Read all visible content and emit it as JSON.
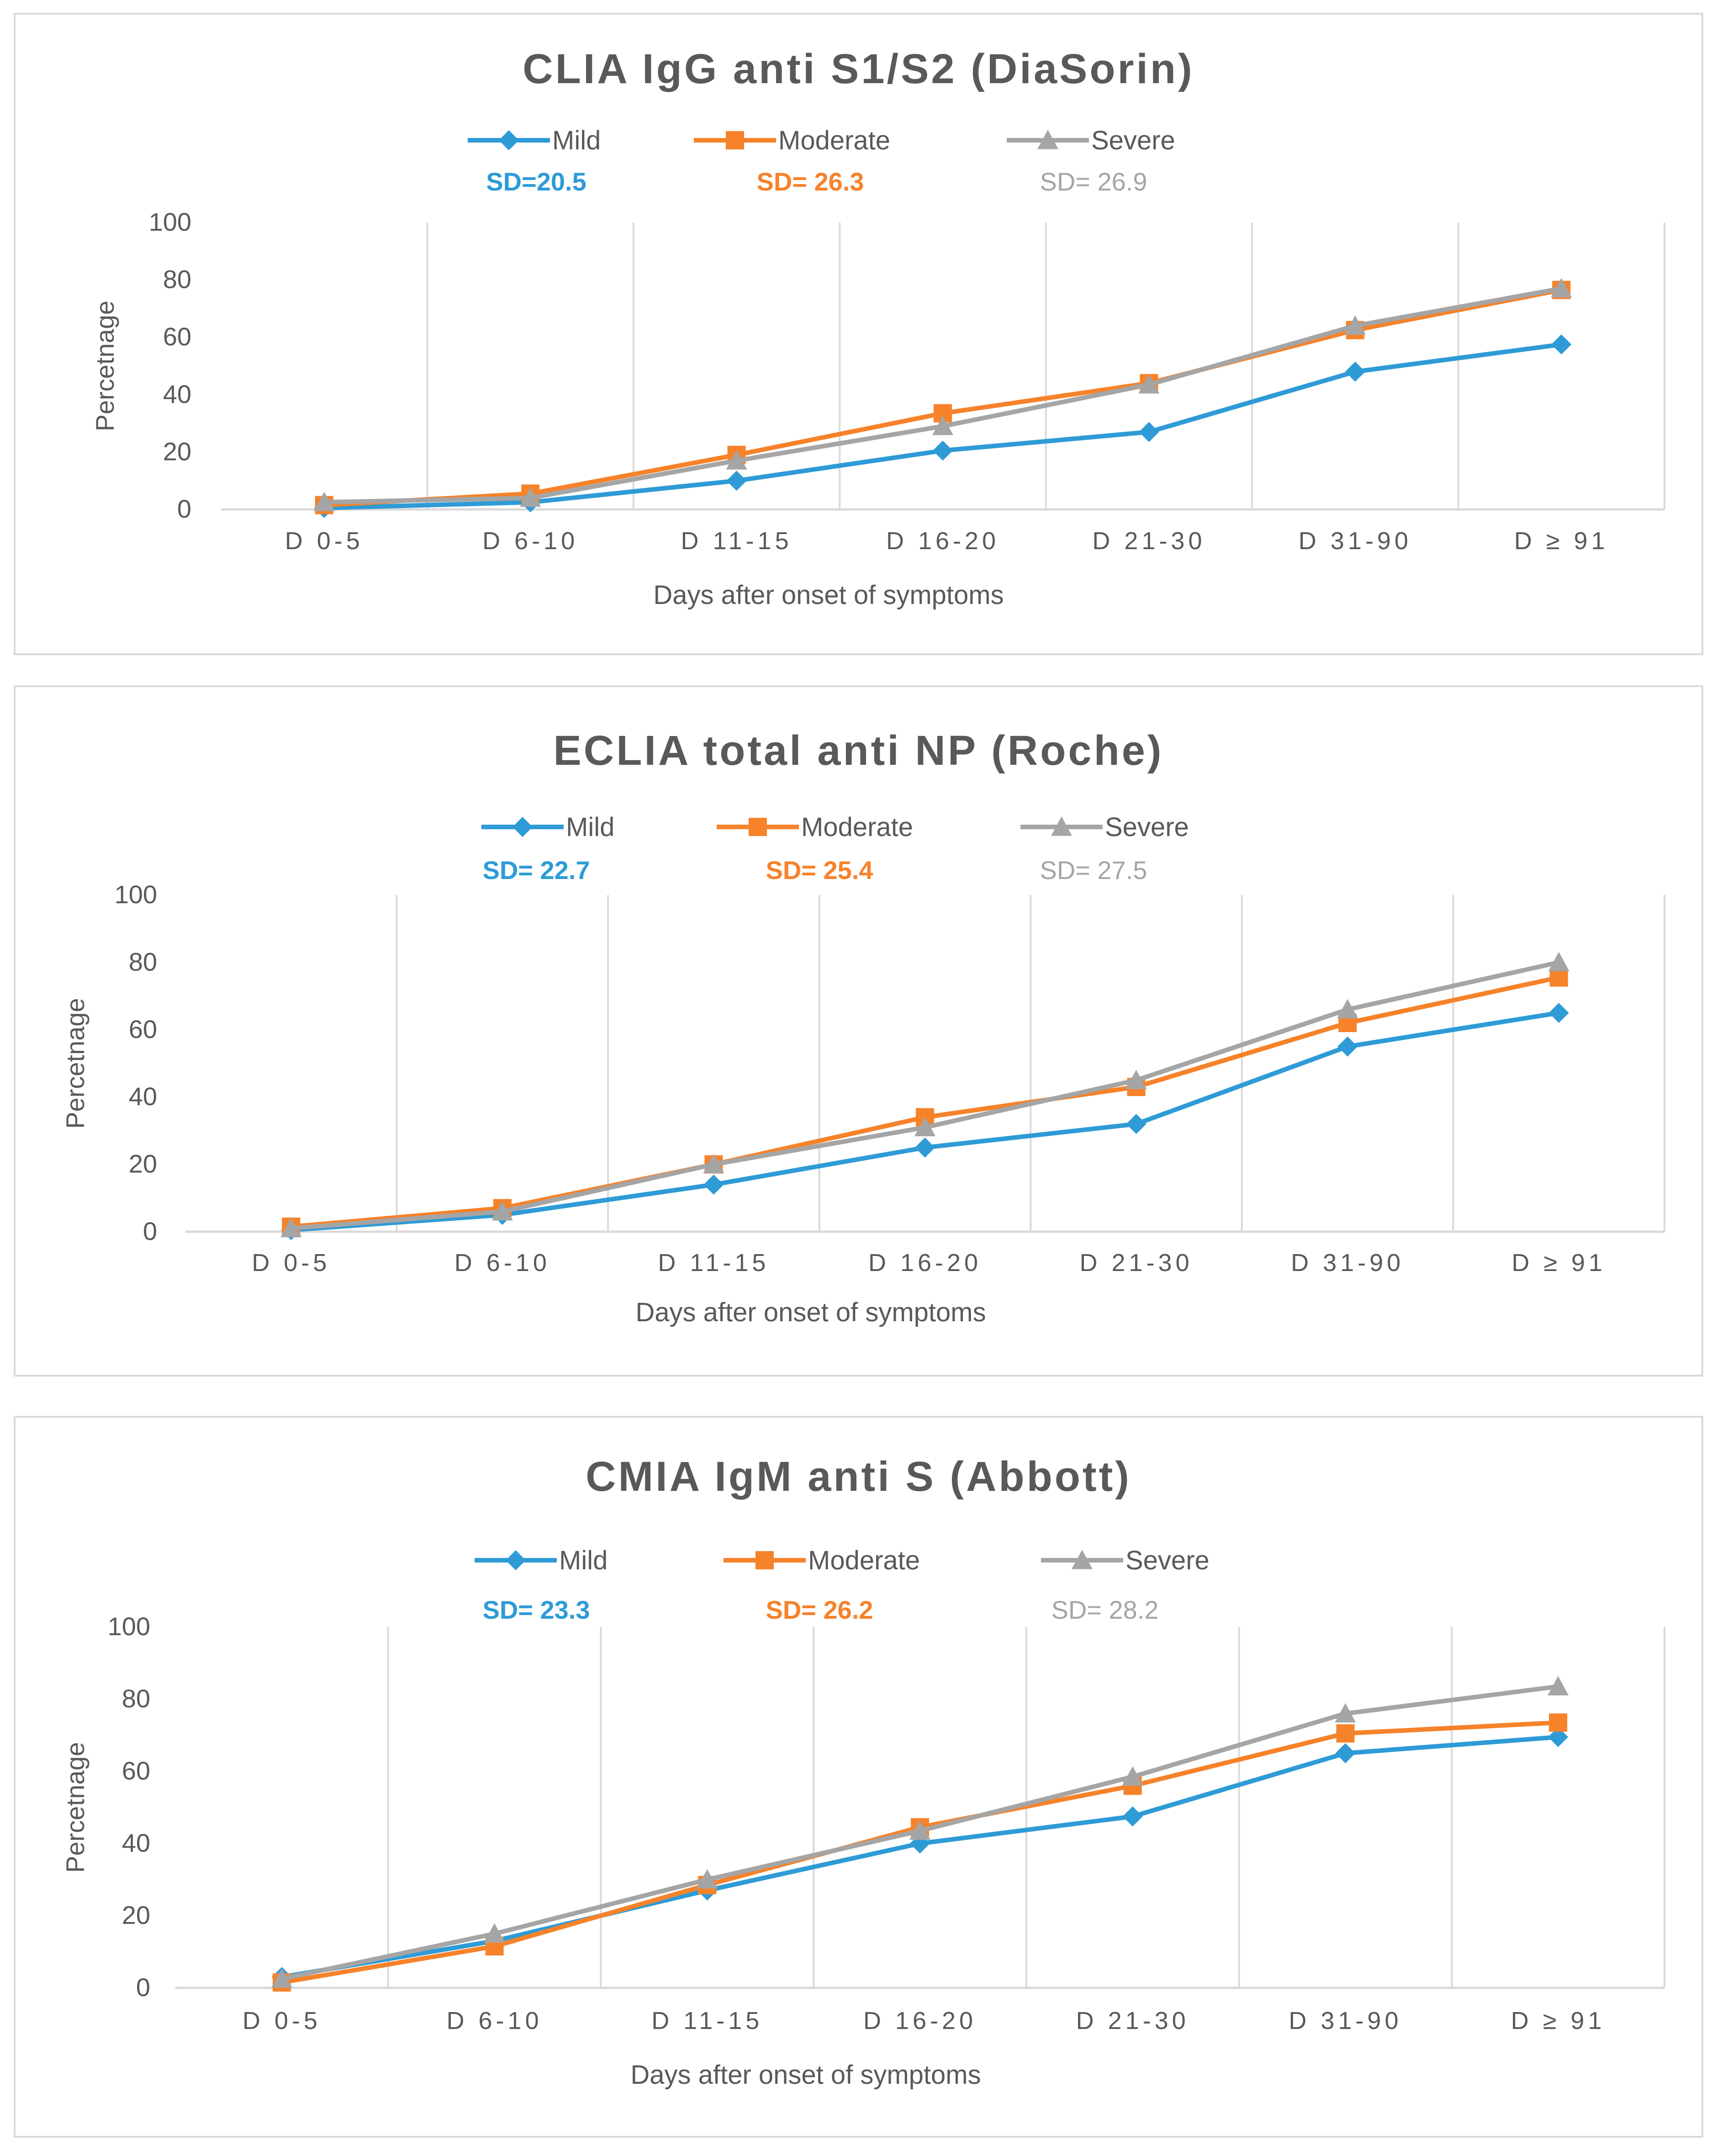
{
  "chart_data": [
    {
      "type": "line",
      "title": "CLIA IgG anti S1/S2 (DiaSorin)",
      "xlabel": "Days after onset of symptoms",
      "ylabel": "Percetnage",
      "ylim": [
        0,
        100
      ],
      "yticks": [
        0,
        20,
        40,
        60,
        80,
        100
      ],
      "categories": [
        "D 0-5",
        "D 6-10",
        "D 11-15",
        "D 16-20",
        "D 21-30",
        "D 31-90",
        "D ≥ 91"
      ],
      "legend_position": "top-center",
      "series": [
        {
          "name": "Mild",
          "marker": "diamond",
          "color": "#2e9bd6",
          "sd_label": "SD=20.5",
          "values": [
            0.5,
            2.5,
            10,
            20.5,
            27,
            48,
            57.5
          ]
        },
        {
          "name": "Moderate",
          "marker": "square",
          "color": "#f6822a",
          "sd_label": "SD= 26.3",
          "values": [
            1.5,
            5.5,
            19,
            33.5,
            44,
            62.5,
            76.5
          ]
        },
        {
          "name": "Severe",
          "marker": "triangle",
          "color": "#a5a5a5",
          "sd_label": "SD= 26.9",
          "values": [
            2.5,
            4,
            17,
            29,
            43.5,
            64,
            77
          ]
        }
      ]
    },
    {
      "type": "line",
      "title": "ECLIA total anti NP (Roche)",
      "xlabel": "Days after onset of symptoms",
      "ylabel": "Percetnage",
      "ylim": [
        0,
        100
      ],
      "yticks": [
        0,
        20,
        40,
        60,
        80,
        100
      ],
      "categories": [
        "D 0-5",
        "D 6-10",
        "D 11-15",
        "D 16-20",
        "D 21-30",
        "D 31-90",
        "D ≥ 91"
      ],
      "legend_position": "top-center",
      "series": [
        {
          "name": "Mild",
          "marker": "diamond",
          "color": "#2e9bd6",
          "sd_label": "SD= 22.7",
          "values": [
            0.5,
            5,
            14,
            25,
            32,
            55,
            65
          ]
        },
        {
          "name": "Moderate",
          "marker": "square",
          "color": "#f6822a",
          "sd_label": "SD= 25.4",
          "values": [
            1.5,
            7,
            20,
            34,
            43,
            62,
            75.5
          ]
        },
        {
          "name": "Severe",
          "marker": "triangle",
          "color": "#a5a5a5",
          "sd_label": "SD= 27.5",
          "values": [
            1,
            6,
            20,
            31,
            45,
            66,
            80
          ]
        }
      ]
    },
    {
      "type": "line",
      "title": "CMIA IgM anti S (Abbott)",
      "xlabel": "Days after onset of symptoms",
      "ylabel": "Percetnage",
      "ylim": [
        0,
        100
      ],
      "yticks": [
        0,
        20,
        40,
        60,
        80,
        100
      ],
      "categories": [
        "D 0-5",
        "D 6-10",
        "D 11-15",
        "D 16-20",
        "D 21-30",
        "D 31-90",
        "D ≥ 91"
      ],
      "legend_position": "top-center",
      "series": [
        {
          "name": "Mild",
          "marker": "diamond",
          "color": "#2e9bd6",
          "sd_label": "SD= 23.3",
          "values": [
            3,
            13,
            27,
            40,
            47.5,
            65,
            69.5
          ]
        },
        {
          "name": "Moderate",
          "marker": "square",
          "color": "#f6822a",
          "sd_label": "SD= 26.2",
          "values": [
            1.5,
            11.5,
            28.5,
            44.5,
            56,
            70.5,
            73.5
          ]
        },
        {
          "name": "Severe",
          "marker": "triangle",
          "color": "#a5a5a5",
          "sd_label": "SD= 28.2",
          "values": [
            2.5,
            15,
            30,
            43.5,
            58.5,
            76,
            83.5
          ]
        }
      ]
    }
  ]
}
